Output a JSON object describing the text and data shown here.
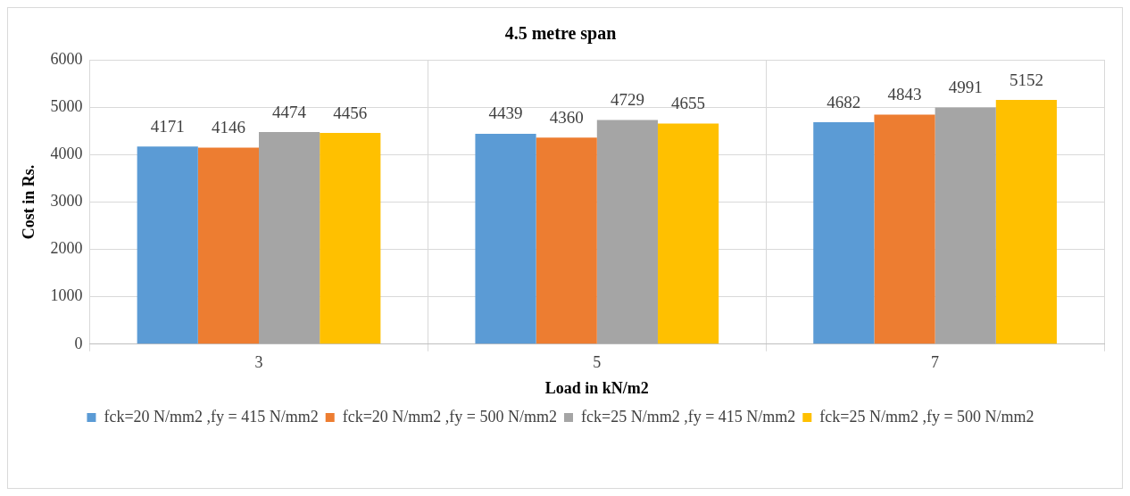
{
  "chart_data": {
    "type": "bar",
    "title": "4.5 metre span",
    "xlabel": "Load in kN/m2",
    "ylabel": "Cost in Rs.",
    "categories": [
      "3",
      "5",
      "7"
    ],
    "series": [
      {
        "name": "fck=20 N/mm2 ,fy = 415 N/mm2",
        "color": "#5b9bd5",
        "values": [
          4171,
          4439,
          4682
        ]
      },
      {
        "name": "fck=20 N/mm2 ,fy = 500 N/mm2",
        "color": "#ed7d31",
        "values": [
          4146,
          4360,
          4843
        ]
      },
      {
        "name": "fck=25 N/mm2 ,fy = 415 N/mm2",
        "color": "#a5a5a5",
        "values": [
          4474,
          4729,
          4991
        ]
      },
      {
        "name": "fck=25 N/mm2 ,fy = 500 N/mm2",
        "color": "#ffc000",
        "values": [
          4456,
          4655,
          5152
        ]
      }
    ],
    "ylim": [
      0,
      6000
    ],
    "yticks": [
      0,
      1000,
      2000,
      3000,
      4000,
      5000,
      6000
    ],
    "grid": true,
    "legend": "bottom",
    "data_labels": true
  }
}
